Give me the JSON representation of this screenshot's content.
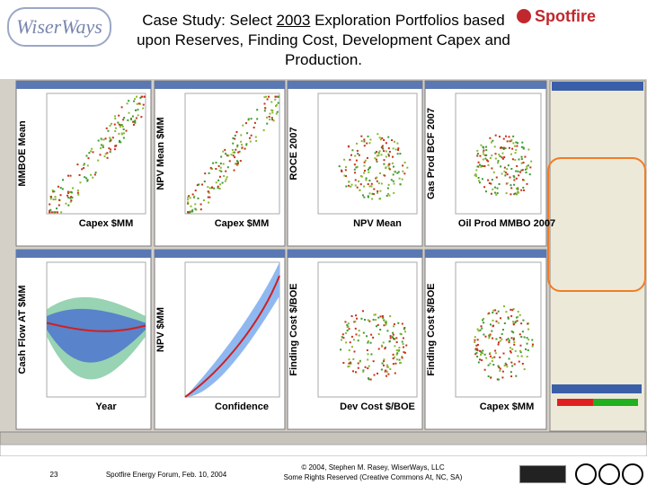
{
  "header": {
    "logo_left": "WiserWays",
    "title_before": "Case Study: Select ",
    "title_year": "2003",
    "title_after": " Exploration Portfolios based upon Reserves, Finding Cost, Development Capex and Production.",
    "logo_right": "Spotfire"
  },
  "panels": [
    {
      "y_label": "MMBOE Mean",
      "x_label": "Capex $MM"
    },
    {
      "y_label": "NPV Mean $MM",
      "x_label": "Capex $MM"
    },
    {
      "y_label": "ROCE 2007",
      "x_label": "NPV Mean"
    },
    {
      "y_label": "Gas Prod BCF 2007",
      "x_label": "Oil Prod MMBO 2007"
    },
    {
      "y_label": "Cash Flow AT $MM",
      "x_label": "Year"
    },
    {
      "y_label": "NPV $MM",
      "x_label": "Confidence"
    },
    {
      "y_label": "Finding Cost $/BOE",
      "x_label": "Dev Cost $/BOE"
    },
    {
      "y_label": "Finding Cost $/BOE",
      "x_label": "Capex $MM"
    }
  ],
  "footer": {
    "page": "23",
    "event": "Spotfire Energy Forum, Feb. 10, 2004",
    "copyright": "© 2004, Stephen M. Rasey, WiserWays, LLC",
    "rights": "Some Rights Reserved (Creative Commons At, NC, SA)"
  }
}
